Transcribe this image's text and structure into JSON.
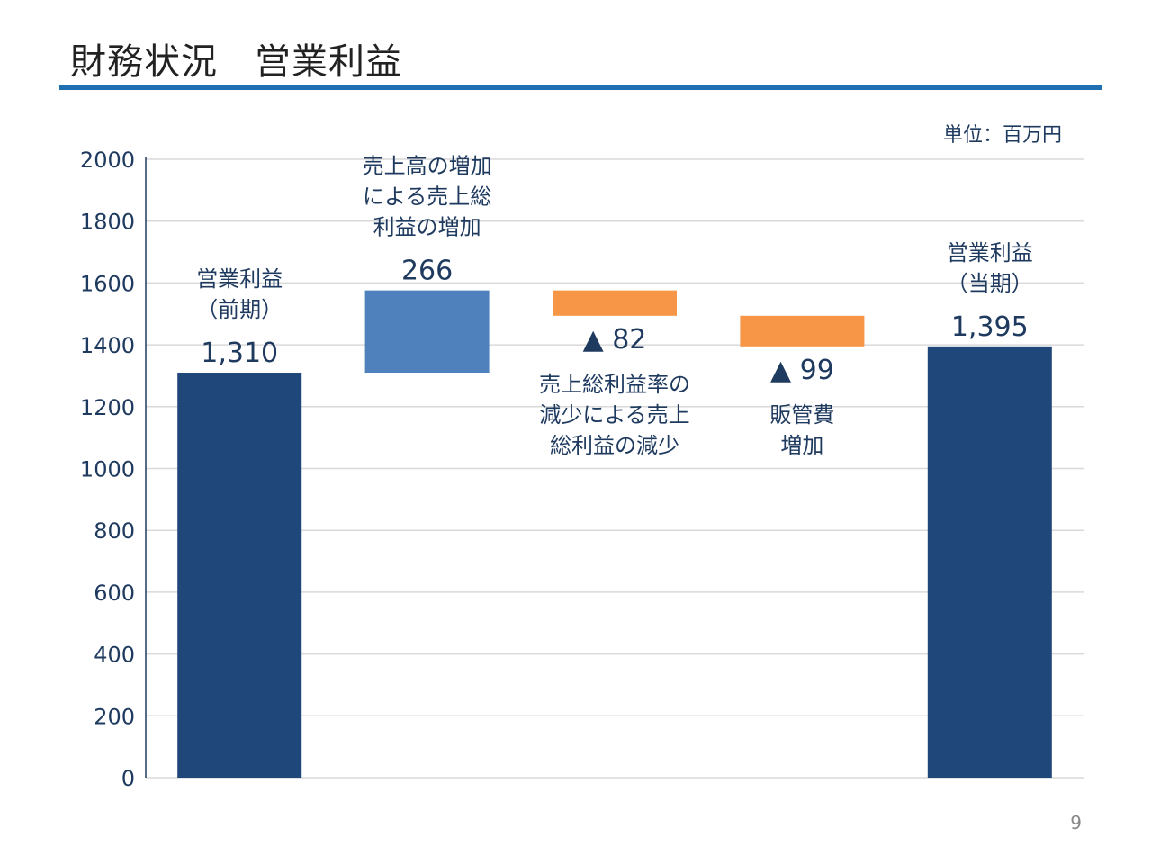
{
  "page": {
    "title": "財務状況　営業利益",
    "unit": "単位：百万円",
    "page_number": "9"
  },
  "colors": {
    "total": "#1f477a",
    "increase": "#4f81bd",
    "decrease": "#f79646",
    "rule": "#1f6fb2",
    "grid": "#d9d9d9",
    "axis": "#1f3a5f"
  },
  "chart_data": {
    "type": "bar",
    "subtype": "waterfall",
    "ylim": [
      0,
      2000
    ],
    "yticks": [
      "0",
      "200",
      "400",
      "600",
      "800",
      "1000",
      "1200",
      "1400",
      "1600",
      "1800",
      "2000"
    ],
    "grid": true,
    "bars": [
      {
        "kind": "total",
        "start": 0,
        "end": 1310,
        "value_label": "1,310",
        "text": [
          "営業利益",
          "（前期）"
        ],
        "text_position": "above"
      },
      {
        "kind": "increase",
        "start": 1310,
        "end": 1576,
        "value_label": "266",
        "text": [
          "売上高の増加",
          "による売上総",
          "利益の増加"
        ],
        "text_position": "above"
      },
      {
        "kind": "decrease",
        "start": 1576,
        "end": 1494,
        "value_label": "▲ 82",
        "text": [
          "売上総利益率の",
          "減少による売上",
          "総利益の減少"
        ],
        "text_position": "below"
      },
      {
        "kind": "decrease",
        "start": 1494,
        "end": 1395,
        "value_label": "▲ 99",
        "text": [
          "販管費",
          "増加"
        ],
        "text_position": "below"
      },
      {
        "kind": "total",
        "start": 0,
        "end": 1395,
        "value_label": "1,395",
        "text": [
          "営業利益",
          "（当期）"
        ],
        "text_position": "above"
      }
    ]
  }
}
